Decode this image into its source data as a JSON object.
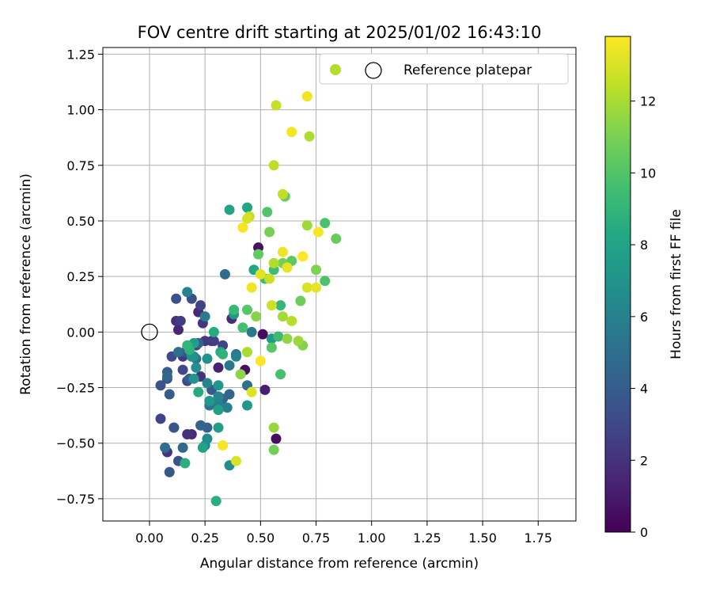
{
  "chart_data": {
    "type": "scatter",
    "title": "FOV centre drift starting at 2025/01/02 16:43:10",
    "xlabel": "Angular distance from reference (arcmin)",
    "ylabel": "Rotation from reference (arcmin)",
    "xlim": [
      -0.21,
      1.92
    ],
    "ylim": [
      -0.85,
      1.28
    ],
    "xticks": [
      "0.00",
      "0.25",
      "0.50",
      "0.75",
      "1.00",
      "1.25",
      "1.50",
      "1.75"
    ],
    "yticks": [
      "−0.75",
      "−0.50",
      "−0.25",
      "0.00",
      "0.25",
      "0.50",
      "0.75",
      "1.00",
      "1.25"
    ],
    "grid": true,
    "legend": {
      "placement": "top-right",
      "entries": [
        {
          "marker": "filled-circle",
          "label": "",
          "color": "#b5de2b"
        },
        {
          "marker": "open-circle",
          "label": "Reference platepar"
        }
      ]
    },
    "reference_point": {
      "x": 0.0,
      "y": 0.0,
      "label": "Reference platepar"
    },
    "colorbar": {
      "label": "Hours from first FF file",
      "colormap": "viridis",
      "range": [
        0,
        13.8
      ],
      "ticks": [
        "0",
        "2",
        "4",
        "6",
        "8",
        "10",
        "12"
      ]
    },
    "series": [
      {
        "points": [
          [
            0.51,
            -0.01,
            0.4
          ],
          [
            0.57,
            -0.48,
            0.5
          ],
          [
            0.43,
            -0.17,
            0.6
          ],
          [
            0.49,
            0.38,
            0.7
          ],
          [
            0.52,
            -0.26,
            1.2
          ],
          [
            0.31,
            -0.16,
            1.3
          ],
          [
            0.31,
            -0.35,
            1.4
          ],
          [
            0.13,
            0.01,
            1.5
          ],
          [
            0.22,
            0.09,
            1.6
          ],
          [
            0.19,
            -0.46,
            1.7
          ],
          [
            0.37,
            0.06,
            1.8
          ],
          [
            0.28,
            -0.04,
            1.8
          ],
          [
            0.12,
            0.05,
            1.9
          ],
          [
            0.17,
            -0.46,
            1.9
          ],
          [
            0.23,
            -0.2,
            2.0
          ],
          [
            0.08,
            -0.54,
            2.1
          ],
          [
            0.15,
            -0.11,
            2.2
          ],
          [
            0.24,
            0.04,
            2.2
          ],
          [
            0.25,
            -0.04,
            2.3
          ],
          [
            0.14,
            0.05,
            2.4
          ],
          [
            0.21,
            -0.06,
            2.5
          ],
          [
            0.11,
            -0.43,
            2.5
          ],
          [
            0.29,
            -0.04,
            2.6
          ],
          [
            0.05,
            -0.39,
            2.7
          ],
          [
            0.23,
            0.12,
            2.7
          ],
          [
            0.33,
            -0.06,
            2.8
          ],
          [
            0.15,
            -0.17,
            2.9
          ],
          [
            0.17,
            -0.22,
            3.0
          ],
          [
            0.1,
            -0.11,
            3.1
          ],
          [
            0.32,
            -0.31,
            3.1
          ],
          [
            0.19,
            0.15,
            3.2
          ],
          [
            0.08,
            -0.21,
            3.3
          ],
          [
            0.12,
            0.15,
            3.4
          ],
          [
            0.16,
            -0.09,
            3.5
          ],
          [
            0.05,
            -0.24,
            3.5
          ],
          [
            0.13,
            -0.58,
            3.6
          ],
          [
            0.11,
            -0.43,
            3.7
          ],
          [
            0.09,
            -0.63,
            3.8
          ],
          [
            0.28,
            -0.26,
            3.9
          ],
          [
            0.09,
            -0.28,
            4.0
          ],
          [
            0.18,
            -0.21,
            4.0
          ],
          [
            0.08,
            -0.18,
            4.1
          ],
          [
            0.22,
            -0.05,
            4.2
          ],
          [
            0.26,
            -0.43,
            4.3
          ],
          [
            0.23,
            -0.42,
            4.4
          ],
          [
            0.36,
            -0.28,
            4.4
          ],
          [
            0.33,
            -0.3,
            4.5
          ],
          [
            0.08,
            -0.2,
            4.6
          ],
          [
            0.15,
            -0.52,
            4.7
          ],
          [
            0.34,
            0.26,
            4.8
          ],
          [
            0.07,
            -0.52,
            4.9
          ],
          [
            0.44,
            -0.24,
            5.0
          ],
          [
            0.13,
            -0.09,
            5.1
          ],
          [
            0.27,
            -0.33,
            5.2
          ],
          [
            0.21,
            -0.12,
            5.3
          ],
          [
            0.39,
            -0.1,
            5.4
          ],
          [
            0.46,
            0.0,
            5.5
          ],
          [
            0.36,
            -0.15,
            5.6
          ],
          [
            0.25,
            0.07,
            5.7
          ],
          [
            0.31,
            -0.32,
            5.8
          ],
          [
            0.35,
            -0.34,
            5.9
          ],
          [
            0.39,
            -0.11,
            6.0
          ],
          [
            0.17,
            0.18,
            6.1
          ],
          [
            0.26,
            -0.23,
            6.2
          ],
          [
            0.31,
            -0.29,
            6.3
          ],
          [
            0.25,
            -0.51,
            6.4
          ],
          [
            0.2,
            -0.11,
            6.5
          ],
          [
            0.36,
            -0.6,
            6.6
          ],
          [
            0.26,
            -0.48,
            6.7
          ],
          [
            0.21,
            -0.16,
            6.8
          ],
          [
            0.26,
            -0.12,
            6.9
          ],
          [
            0.19,
            -0.11,
            7.0
          ],
          [
            0.2,
            -0.21,
            7.1
          ],
          [
            0.31,
            -0.24,
            7.2
          ],
          [
            0.27,
            -0.31,
            7.3
          ],
          [
            0.44,
            -0.33,
            7.3
          ],
          [
            0.38,
            0.08,
            7.4
          ],
          [
            0.55,
            -0.03,
            7.5
          ],
          [
            0.31,
            -0.43,
            7.6
          ],
          [
            0.2,
            -0.05,
            7.7
          ],
          [
            0.31,
            -0.35,
            7.8
          ],
          [
            0.24,
            -0.52,
            7.9
          ],
          [
            0.36,
            0.55,
            8.0
          ],
          [
            0.44,
            0.56,
            8.1
          ],
          [
            0.47,
            0.28,
            8.2
          ],
          [
            0.32,
            -0.09,
            8.3
          ],
          [
            0.22,
            -0.27,
            8.4
          ],
          [
            0.29,
            0.0,
            8.5
          ],
          [
            0.3,
            -0.76,
            8.6
          ],
          [
            0.16,
            -0.59,
            8.7
          ],
          [
            0.18,
            -0.08,
            8.8
          ],
          [
            0.33,
            -0.1,
            8.9
          ],
          [
            0.17,
            -0.06,
            9.0
          ],
          [
            0.59,
            0.12,
            9.1
          ],
          [
            0.38,
            0.1,
            9.2
          ],
          [
            0.58,
            -0.02,
            9.3
          ],
          [
            0.56,
            0.28,
            9.4
          ],
          [
            0.52,
            0.24,
            9.5
          ],
          [
            0.42,
            0.02,
            9.6
          ],
          [
            0.59,
            -0.19,
            9.7
          ],
          [
            0.79,
            0.49,
            9.8
          ],
          [
            0.79,
            0.23,
            9.9
          ],
          [
            0.53,
            0.54,
            10.0
          ],
          [
            0.44,
            0.1,
            10.1
          ],
          [
            0.55,
            -0.07,
            10.2
          ],
          [
            0.64,
            0.32,
            10.3
          ],
          [
            0.49,
            0.35,
            10.4
          ],
          [
            0.61,
            0.61,
            10.5
          ],
          [
            0.84,
            0.42,
            10.6
          ],
          [
            0.68,
            0.14,
            10.7
          ],
          [
            0.56,
            -0.53,
            10.8
          ],
          [
            0.6,
            0.31,
            10.9
          ],
          [
            0.54,
            0.45,
            11.0
          ],
          [
            0.75,
            0.28,
            11.1
          ],
          [
            0.69,
            -0.06,
            11.2
          ],
          [
            0.48,
            0.07,
            11.3
          ],
          [
            0.41,
            -0.19,
            11.4
          ],
          [
            0.62,
            -0.03,
            11.5
          ],
          [
            0.56,
            -0.43,
            11.6
          ],
          [
            0.67,
            -0.04,
            11.7
          ],
          [
            0.71,
            0.48,
            11.8
          ],
          [
            0.6,
            0.07,
            11.9
          ],
          [
            0.44,
            -0.09,
            12.0
          ],
          [
            0.72,
            0.88,
            12.1
          ],
          [
            0.56,
            0.31,
            12.2
          ],
          [
            0.64,
            0.05,
            12.3
          ],
          [
            0.56,
            0.75,
            12.4
          ],
          [
            0.45,
            0.52,
            12.5
          ],
          [
            0.6,
            0.62,
            12.5
          ],
          [
            0.57,
            1.02,
            12.6
          ],
          [
            0.54,
            0.24,
            12.7
          ],
          [
            0.55,
            0.12,
            12.8
          ],
          [
            0.44,
            0.51,
            12.9
          ],
          [
            0.71,
            0.2,
            13.0
          ],
          [
            0.39,
            -0.58,
            13.0
          ],
          [
            0.46,
            -0.27,
            13.1
          ],
          [
            0.5,
            0.26,
            13.2
          ],
          [
            0.62,
            0.29,
            13.3
          ],
          [
            0.75,
            0.2,
            13.3
          ],
          [
            0.6,
            0.36,
            13.4
          ],
          [
            0.46,
            0.2,
            13.5
          ],
          [
            0.71,
            1.06,
            13.5
          ],
          [
            0.64,
            0.9,
            13.6
          ],
          [
            0.76,
            0.45,
            13.6
          ],
          [
            0.42,
            0.47,
            13.7
          ],
          [
            0.33,
            -0.51,
            13.7
          ],
          [
            0.5,
            -0.13,
            13.8
          ],
          [
            0.69,
            0.34,
            13.8
          ]
        ]
      }
    ]
  }
}
